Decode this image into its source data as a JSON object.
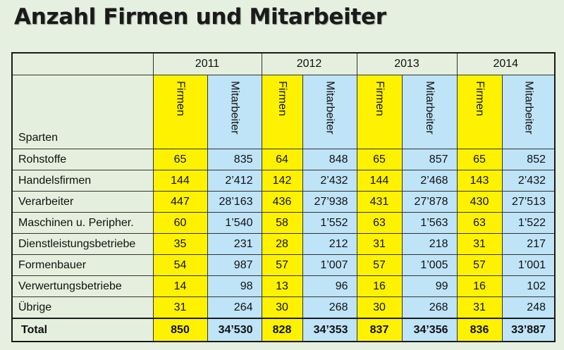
{
  "title": "Anzahl Firmen und Mitarbeiter",
  "colors": {
    "firmen": "#fff200",
    "mitarbeiter": "#bfe3f7",
    "label": "#e4efdd"
  },
  "chart_data": {
    "type": "table",
    "title": "Anzahl Firmen und Mitarbeiter",
    "row_header": "Sparten",
    "years": [
      "2011",
      "2012",
      "2013",
      "2014"
    ],
    "subcolumns": [
      "Firmen",
      "Mitarbeiter"
    ],
    "rows": [
      {
        "label": "Rohstoffe",
        "values": [
          "65",
          "835",
          "64",
          "848",
          "65",
          "857",
          "65",
          "852"
        ]
      },
      {
        "label": "Handelsfirmen",
        "values": [
          "144",
          "2’412",
          "142",
          "2’432",
          "144",
          "2’468",
          "143",
          "2’432"
        ]
      },
      {
        "label": "Verarbeiter",
        "values": [
          "447",
          "28’163",
          "436",
          "27’938",
          "431",
          "27’878",
          "430",
          "27’513"
        ]
      },
      {
        "label": "Maschinen u. Peripher.",
        "values": [
          "60",
          "1’540",
          "58",
          "1’552",
          "63",
          "1’563",
          "63",
          "1’522"
        ]
      },
      {
        "label": "Dienstleistungsbetriebe",
        "values": [
          "35",
          "231",
          "28",
          "212",
          "31",
          "218",
          "31",
          "217"
        ]
      },
      {
        "label": "Formenbauer",
        "values": [
          "54",
          "987",
          "57",
          "1’007",
          "57",
          "1’005",
          "57",
          "1’001"
        ]
      },
      {
        "label": "Verwertungsbetriebe",
        "values": [
          "14",
          "98",
          "13",
          "96",
          "16",
          "99",
          "16",
          "102"
        ]
      },
      {
        "label": "Übrige",
        "values": [
          "31",
          "264",
          "30",
          "268",
          "30",
          "268",
          "31",
          "248"
        ]
      }
    ],
    "total": {
      "label": "Total",
      "values": [
        "850",
        "34’530",
        "828",
        "34’353",
        "837",
        "34’356",
        "836",
        "33’887"
      ]
    }
  }
}
